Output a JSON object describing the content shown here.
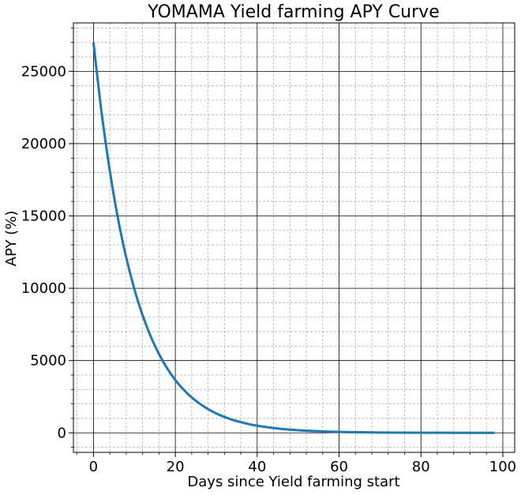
{
  "chart_data": {
    "type": "line",
    "title": "YOMAMA Yield farming APY Curve",
    "xlabel": "Days since Yield farming start",
    "ylabel": "APY (%)",
    "xlim": [
      -4.9,
      102.9
    ],
    "ylim": [
      -1350,
      28350
    ],
    "x_ticks": [
      0,
      20,
      40,
      60,
      80,
      100
    ],
    "y_ticks": [
      0,
      5000,
      10000,
      15000,
      20000,
      25000
    ],
    "x_tick_labels": [
      "0",
      "20",
      "40",
      "60",
      "80",
      "100"
    ],
    "y_tick_labels": [
      "0",
      "5000",
      "10000",
      "15000",
      "20000",
      "25000"
    ],
    "grid": {
      "major": true,
      "minor": true
    },
    "series": [
      {
        "color": "#1f77b4",
        "x": [
          0,
          2,
          4,
          6,
          8,
          10,
          12,
          14,
          16,
          18,
          20,
          22,
          24,
          26,
          28,
          30,
          32,
          34,
          36,
          38,
          40,
          45,
          50,
          55,
          60,
          65,
          70,
          75,
          80,
          85,
          90,
          95,
          98
        ],
        "y": [
          27000,
          22100,
          18100,
          14800,
          12130,
          9930,
          8130,
          6660,
          5450,
          4460,
          3650,
          2990,
          2450,
          2010,
          1640,
          1340,
          1100,
          900,
          740,
          605,
          495,
          300,
          180,
          110,
          66,
          40,
          24,
          15,
          9,
          5,
          3,
          2,
          1
        ]
      }
    ]
  }
}
